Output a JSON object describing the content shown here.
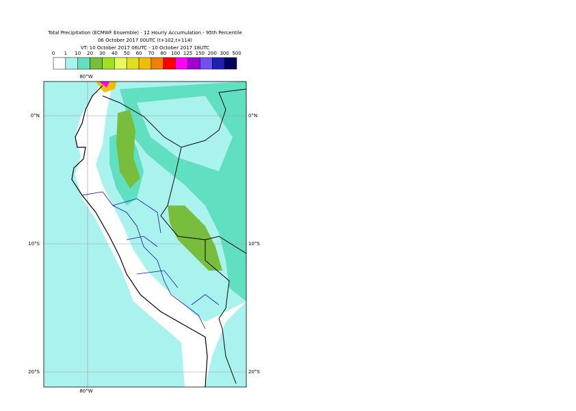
{
  "header": {
    "lines": [
      "Total Precipitation (ECMWF Ensemble) - 12 Hourly Accumulation - 95th Percentile",
      "06 October 2017 00UTC (t+102,t+114)",
      "VT: 10 October 2017 06UTC - 10 October 2017 18UTC"
    ]
  },
  "legend": {
    "labels": [
      "0",
      "1",
      "10",
      "20",
      "30",
      "40",
      "50",
      "60",
      "70",
      "80",
      "100",
      "125",
      "150",
      "200",
      "300",
      "500"
    ],
    "colors": [
      "#ffffff",
      "#aaf2ee",
      "#60e0c0",
      "#78be3c",
      "#a0e020",
      "#e8f860",
      "#e0e020",
      "#f0c000",
      "#f08000",
      "#ff0000",
      "#ff00ff",
      "#a000d0",
      "#7050f0",
      "#2020b0",
      "#000060"
    ]
  },
  "map": {
    "lon_top": "80°W",
    "lon_bottom": "80°W",
    "lat_left": [
      "0°N",
      "10°S",
      "20°S"
    ],
    "lat_right": [
      "0°N",
      "10°S",
      "20°S"
    ]
  }
}
